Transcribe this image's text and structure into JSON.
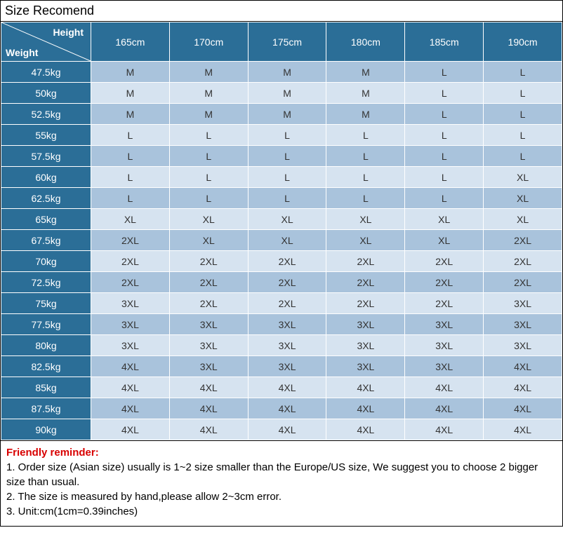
{
  "title": "Size Recomend",
  "corner": {
    "height_label": "Height",
    "weight_label": "Weight"
  },
  "heights": [
    "165cm",
    "170cm",
    "175cm",
    "180cm",
    "185cm",
    "190cm"
  ],
  "weights": [
    "47.5kg",
    "50kg",
    "52.5kg",
    "55kg",
    "57.5kg",
    "60kg",
    "62.5kg",
    "65kg",
    "67.5kg",
    "70kg",
    "72.5kg",
    "75kg",
    "77.5kg",
    "80kg",
    "82.5kg",
    "85kg",
    "87.5kg",
    "90kg"
  ],
  "grid": [
    [
      "M",
      "M",
      "M",
      "M",
      "L",
      "L"
    ],
    [
      "M",
      "M",
      "M",
      "M",
      "L",
      "L"
    ],
    [
      "M",
      "M",
      "M",
      "M",
      "L",
      "L"
    ],
    [
      "L",
      "L",
      "L",
      "L",
      "L",
      "L"
    ],
    [
      "L",
      "L",
      "L",
      "L",
      "L",
      "L"
    ],
    [
      "L",
      "L",
      "L",
      "L",
      "L",
      "XL"
    ],
    [
      "L",
      "L",
      "L",
      "L",
      "L",
      "XL"
    ],
    [
      "XL",
      "XL",
      "XL",
      "XL",
      "XL",
      "XL"
    ],
    [
      "2XL",
      "XL",
      "XL",
      "XL",
      "XL",
      "2XL"
    ],
    [
      "2XL",
      "2XL",
      "2XL",
      "2XL",
      "2XL",
      "2XL"
    ],
    [
      "2XL",
      "2XL",
      "2XL",
      "2XL",
      "2XL",
      "2XL"
    ],
    [
      "3XL",
      "2XL",
      "2XL",
      "2XL",
      "2XL",
      "3XL"
    ],
    [
      "3XL",
      "3XL",
      "3XL",
      "3XL",
      "3XL",
      "3XL"
    ],
    [
      "3XL",
      "3XL",
      "3XL",
      "3XL",
      "3XL",
      "3XL"
    ],
    [
      "4XL",
      "3XL",
      "3XL",
      "3XL",
      "3XL",
      "4XL"
    ],
    [
      "4XL",
      "4XL",
      "4XL",
      "4XL",
      "4XL",
      "4XL"
    ],
    [
      "4XL",
      "4XL",
      "4XL",
      "4XL",
      "4XL",
      "4XL"
    ],
    [
      "4XL",
      "4XL",
      "4XL",
      "4XL",
      "4XL",
      "4XL"
    ]
  ],
  "colors": {
    "header_bg": "#2b6e97",
    "header_fg": "#ffffff",
    "row_light": "#d6e3f0",
    "row_dark": "#a9c3dc",
    "reminder_title": "#d80000"
  },
  "reminder": {
    "title": "Friendly reminder:",
    "lines": [
      "1. Order size (Asian size) usually is 1~2 size smaller than the Europe/US size, We suggest you to choose 2 bigger size than usual.",
      "2. The size is measured by hand,please allow 2~3cm error.",
      "3. Unit:cm(1cm=0.39inches)"
    ]
  }
}
